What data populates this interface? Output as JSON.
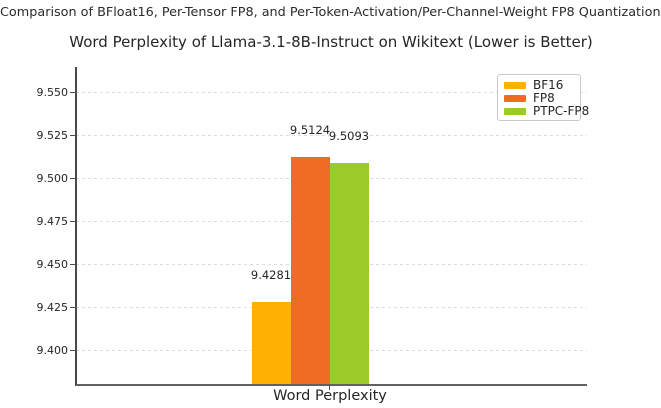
{
  "header": {
    "subtitle": "Comparison of BFloat16, Per-Tensor FP8, and Per-Token-Activation/Per-Channel-Weight FP8 Quantization"
  },
  "chart_data": {
    "type": "bar",
    "title": "Word Perplexity of Llama-3.1-8B-Instruct on Wikitext (Lower is Better)",
    "categories": [
      "Word Perplexity"
    ],
    "series": [
      {
        "name": "BF16",
        "values": [
          9.4281
        ],
        "value_label": "9.4281",
        "color": "#FFB000"
      },
      {
        "name": "FP8",
        "values": [
          9.5124
        ],
        "value_label": "9.5124",
        "color": "#F06C24"
      },
      {
        "name": "PTPC-FP8",
        "values": [
          9.5093
        ],
        "value_label": "9.5093",
        "color": "#9ACB28"
      }
    ],
    "xlabel": "Word Perplexity",
    "ylabel": "",
    "ylim": [
      9.38,
      9.565
    ],
    "yticks": [
      9.4,
      9.425,
      9.45,
      9.475,
      9.5,
      9.525,
      9.55
    ],
    "ytick_labels": [
      "9.400",
      "9.425",
      "9.450",
      "9.475",
      "9.500",
      "9.525",
      "9.550"
    ],
    "grid": true,
    "legend_position": "upper right"
  }
}
